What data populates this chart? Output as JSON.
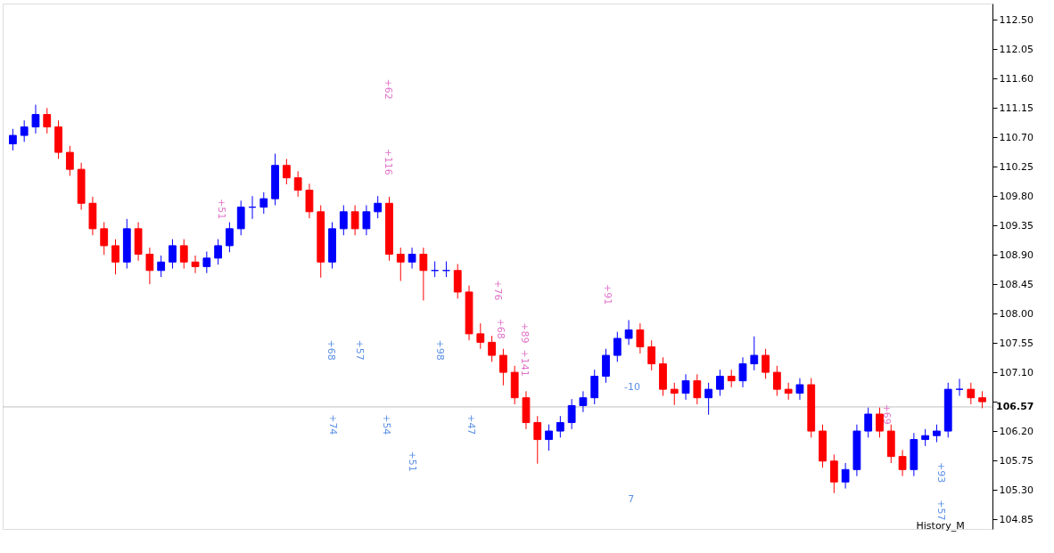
{
  "chart_data": {
    "type": "candlestick",
    "categories": [
      null,
      null,
      null,
      null,
      null,
      null,
      null,
      null,
      null,
      null,
      null,
      null,
      null,
      null,
      null,
      null,
      null,
      null,
      null,
      null,
      null,
      null,
      null,
      null,
      null,
      null,
      null,
      null,
      null,
      null,
      null,
      null,
      null,
      null,
      null,
      null,
      null,
      null,
      null,
      null,
      null,
      null,
      null,
      null,
      null,
      null,
      null,
      null,
      null,
      null,
      null,
      null,
      null,
      null,
      null,
      null,
      null,
      null,
      null,
      null,
      null,
      null,
      null,
      null,
      null,
      null,
      null,
      null,
      null,
      null,
      null,
      null,
      null,
      null,
      null,
      null,
      null,
      null,
      null,
      null,
      null,
      null,
      null,
      null,
      null,
      null
    ],
    "ohlc": [
      [
        110.6,
        110.83,
        110.5,
        110.73
      ],
      [
        110.73,
        110.96,
        110.63,
        110.86
      ],
      [
        110.86,
        111.2,
        110.76,
        111.05
      ],
      [
        111.05,
        111.15,
        110.76,
        110.86
      ],
      [
        110.86,
        110.96,
        110.37,
        110.47
      ],
      [
        110.47,
        110.57,
        110.11,
        110.21
      ],
      [
        110.21,
        110.31,
        109.59,
        109.69
      ],
      [
        109.69,
        109.79,
        109.2,
        109.3
      ],
      [
        109.3,
        109.4,
        108.9,
        109.04
      ],
      [
        109.04,
        109.14,
        108.6,
        108.79
      ],
      [
        108.79,
        109.45,
        108.69,
        109.3
      ],
      [
        109.3,
        109.4,
        108.81,
        108.91
      ],
      [
        108.91,
        109.01,
        108.45,
        108.66
      ],
      [
        108.66,
        108.89,
        108.56,
        108.79
      ],
      [
        108.79,
        109.14,
        108.69,
        109.04
      ],
      [
        109.04,
        109.14,
        108.69,
        108.79
      ],
      [
        108.79,
        108.89,
        108.62,
        108.72
      ],
      [
        108.72,
        108.95,
        108.62,
        108.85
      ],
      [
        108.85,
        109.14,
        108.75,
        109.04
      ],
      [
        109.04,
        109.4,
        108.94,
        109.3
      ],
      [
        109.3,
        109.73,
        109.2,
        109.63
      ],
      [
        109.63,
        109.8,
        109.45,
        109.63
      ],
      [
        109.63,
        109.86,
        109.53,
        109.76
      ],
      [
        109.76,
        110.45,
        109.66,
        110.27
      ],
      [
        110.27,
        110.37,
        109.98,
        110.08
      ],
      [
        110.08,
        110.18,
        109.79,
        109.89
      ],
      [
        109.89,
        109.99,
        109.46,
        109.56
      ],
      [
        109.56,
        109.66,
        108.55,
        108.79
      ],
      [
        108.79,
        109.4,
        108.69,
        109.3
      ],
      [
        109.3,
        109.66,
        109.2,
        109.56
      ],
      [
        109.56,
        109.66,
        109.2,
        109.3
      ],
      [
        109.3,
        109.66,
        109.2,
        109.56
      ],
      [
        109.56,
        109.8,
        109.46,
        109.69
      ],
      [
        109.69,
        109.79,
        108.81,
        108.91
      ],
      [
        108.91,
        109.01,
        108.5,
        108.79
      ],
      [
        108.79,
        109.01,
        108.69,
        108.91
      ],
      [
        108.91,
        109.01,
        108.2,
        108.66
      ],
      [
        108.66,
        108.8,
        108.56,
        108.66
      ],
      [
        108.66,
        108.8,
        108.56,
        108.66
      ],
      [
        108.66,
        108.76,
        108.23,
        108.33
      ],
      [
        108.33,
        108.43,
        107.59,
        107.69
      ],
      [
        107.69,
        107.85,
        107.46,
        107.56
      ],
      [
        107.56,
        107.66,
        107.26,
        107.36
      ],
      [
        107.36,
        107.46,
        106.9,
        107.1
      ],
      [
        107.1,
        107.2,
        106.61,
        106.71
      ],
      [
        106.71,
        106.81,
        106.23,
        106.33
      ],
      [
        106.33,
        106.43,
        105.7,
        106.07
      ],
      [
        106.07,
        106.3,
        105.9,
        106.2
      ],
      [
        106.2,
        106.43,
        106.1,
        106.33
      ],
      [
        106.33,
        106.69,
        106.23,
        106.59
      ],
      [
        106.59,
        106.81,
        106.49,
        106.71
      ],
      [
        106.71,
        107.14,
        106.61,
        107.04
      ],
      [
        107.04,
        107.46,
        106.94,
        107.36
      ],
      [
        107.36,
        107.72,
        107.26,
        107.62
      ],
      [
        107.62,
        107.9,
        107.52,
        107.75
      ],
      [
        107.75,
        107.85,
        107.39,
        107.49
      ],
      [
        107.49,
        107.59,
        107.13,
        107.23
      ],
      [
        107.23,
        107.33,
        106.74,
        106.84
      ],
      [
        106.84,
        106.94,
        106.6,
        106.78
      ],
      [
        106.78,
        107.07,
        106.68,
        106.97
      ],
      [
        106.97,
        107.07,
        106.61,
        106.71
      ],
      [
        106.71,
        106.94,
        106.45,
        106.84
      ],
      [
        106.84,
        107.14,
        106.74,
        107.04
      ],
      [
        107.04,
        107.14,
        106.87,
        106.97
      ],
      [
        106.97,
        107.33,
        106.87,
        107.23
      ],
      [
        107.23,
        107.65,
        107.13,
        107.36
      ],
      [
        107.36,
        107.46,
        107.0,
        107.1
      ],
      [
        107.1,
        107.2,
        106.74,
        106.84
      ],
      [
        106.84,
        106.94,
        106.68,
        106.78
      ],
      [
        106.78,
        107.01,
        106.68,
        106.91
      ],
      [
        106.91,
        107.01,
        106.1,
        106.2
      ],
      [
        106.2,
        106.3,
        105.64,
        105.74
      ],
      [
        105.74,
        105.84,
        105.25,
        105.42
      ],
      [
        105.42,
        105.71,
        105.32,
        105.61
      ],
      [
        105.61,
        106.3,
        105.51,
        106.2
      ],
      [
        106.2,
        106.56,
        106.1,
        106.46
      ],
      [
        106.46,
        106.56,
        106.1,
        106.2
      ],
      [
        106.2,
        106.3,
        105.71,
        105.81
      ],
      [
        105.81,
        105.91,
        105.51,
        105.61
      ],
      [
        105.61,
        106.17,
        105.51,
        106.07
      ],
      [
        106.07,
        106.23,
        105.97,
        106.13
      ],
      [
        106.13,
        106.3,
        106.03,
        106.2
      ],
      [
        106.2,
        106.94,
        106.1,
        106.84
      ],
      [
        106.84,
        107.0,
        106.74,
        106.84
      ],
      [
        106.84,
        106.94,
        106.61,
        106.71
      ],
      [
        106.71,
        106.81,
        106.55,
        106.65
      ]
    ],
    "colors": [
      "#0000ff",
      "#0000ff",
      "#0000ff",
      "#ff0000",
      "#ff0000",
      "#ff0000",
      "#ff0000",
      "#ff0000",
      "#ff0000",
      "#ff0000",
      "#0000ff",
      "#ff0000",
      "#ff0000",
      "#0000ff",
      "#0000ff",
      "#ff0000",
      "#ff0000",
      "#0000ff",
      "#0000ff",
      "#0000ff",
      "#0000ff",
      "#0000ff",
      "#0000ff",
      "#0000ff",
      "#ff0000",
      "#ff0000",
      "#ff0000",
      "#ff0000",
      "#0000ff",
      "#0000ff",
      "#ff0000",
      "#0000ff",
      "#0000ff",
      "#ff0000",
      "#ff0000",
      "#0000ff",
      "#ff0000",
      "#0000ff",
      "#0000ff",
      "#ff0000",
      "#ff0000",
      "#ff0000",
      "#ff0000",
      "#ff0000",
      "#ff0000",
      "#ff0000",
      "#ff0000",
      "#0000ff",
      "#0000ff",
      "#0000ff",
      "#0000ff",
      "#0000ff",
      "#0000ff",
      "#0000ff",
      "#0000ff",
      "#ff0000",
      "#ff0000",
      "#ff0000",
      "#ff0000",
      "#0000ff",
      "#ff0000",
      "#0000ff",
      "#0000ff",
      "#ff0000",
      "#0000ff",
      "#0000ff",
      "#ff0000",
      "#ff0000",
      "#ff0000",
      "#0000ff",
      "#ff0000",
      "#ff0000",
      "#ff0000",
      "#0000ff",
      "#0000ff",
      "#0000ff",
      "#ff0000",
      "#ff0000",
      "#ff0000",
      "#0000ff",
      "#0000ff",
      "#0000ff",
      "#0000ff",
      "#0000ff",
      "#ff0000",
      "#ff0000"
    ],
    "ylim": [
      104.7,
      112.75
    ],
    "yticks": [
      104.85,
      {
        "value": 105.3,
        "label": "105.30"
      },
      105.75,
      {
        "value": 106.2,
        "label": "106.20"
      },
      {
        "value": 106.65,
        "label": null
      },
      {
        "value": 107.1,
        "label": "107.10"
      },
      107.55,
      {
        "value": 108,
        "label": "108.00"
      },
      108.45,
      {
        "value": 108.9,
        "label": "108.90"
      },
      109.35,
      {
        "value": 109.8,
        "label": "109.80"
      },
      110.25,
      {
        "value": 110.7,
        "label": "110.70"
      },
      111.15,
      {
        "value": 111.6,
        "label": "111.60"
      },
      112.05,
      {
        "value": 112.5,
        "label": "112.50"
      }
    ],
    "ref_lines": [
      {
        "axis": "y",
        "value": 106.57,
        "label": "106.57",
        "color": "#c0c0c0"
      }
    ],
    "annotations": [
      "+62",
      "+116",
      "+51",
      "+76",
      "+91",
      "+68",
      "+57",
      "+98",
      "+68",
      "+89",
      "+141",
      "+74",
      "+54",
      "+47",
      "+51",
      "+69",
      "+93",
      "+57",
      "-10",
      "7",
      "History_M"
    ],
    "grid": false,
    "tick_labels": "y"
  }
}
